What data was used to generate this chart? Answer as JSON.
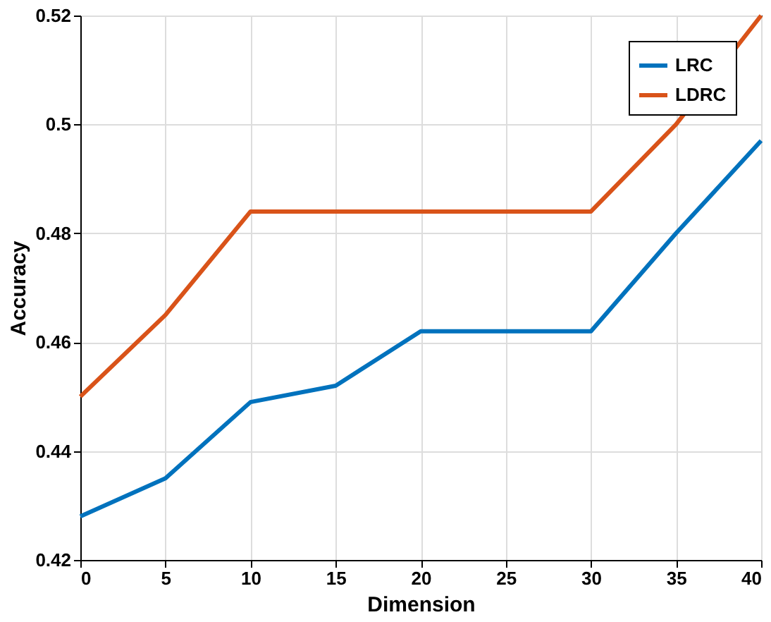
{
  "chart_data": {
    "type": "line",
    "xlabel": "Dimension",
    "ylabel": "Accuracy",
    "x": [
      0,
      5,
      10,
      15,
      20,
      25,
      30,
      35,
      40
    ],
    "series": [
      {
        "name": "LRC",
        "color": "#0072bd",
        "values": [
          0.428,
          0.435,
          0.449,
          0.452,
          0.462,
          0.462,
          0.462,
          0.48,
          0.497
        ]
      },
      {
        "name": "LDRC",
        "color": "#d95319",
        "values": [
          0.45,
          0.465,
          0.484,
          0.484,
          0.484,
          0.484,
          0.484,
          0.5,
          0.52
        ]
      }
    ],
    "xlim": [
      0,
      40
    ],
    "xticks": [
      0,
      5,
      10,
      15,
      20,
      25,
      30,
      35,
      40
    ],
    "ylim": [
      0.42,
      0.52
    ],
    "yticks": [
      0.42,
      0.44,
      0.46,
      0.48,
      0.5,
      0.52
    ],
    "grid": true,
    "legend": "top right",
    "marker": "none",
    "line_style": "solid"
  }
}
